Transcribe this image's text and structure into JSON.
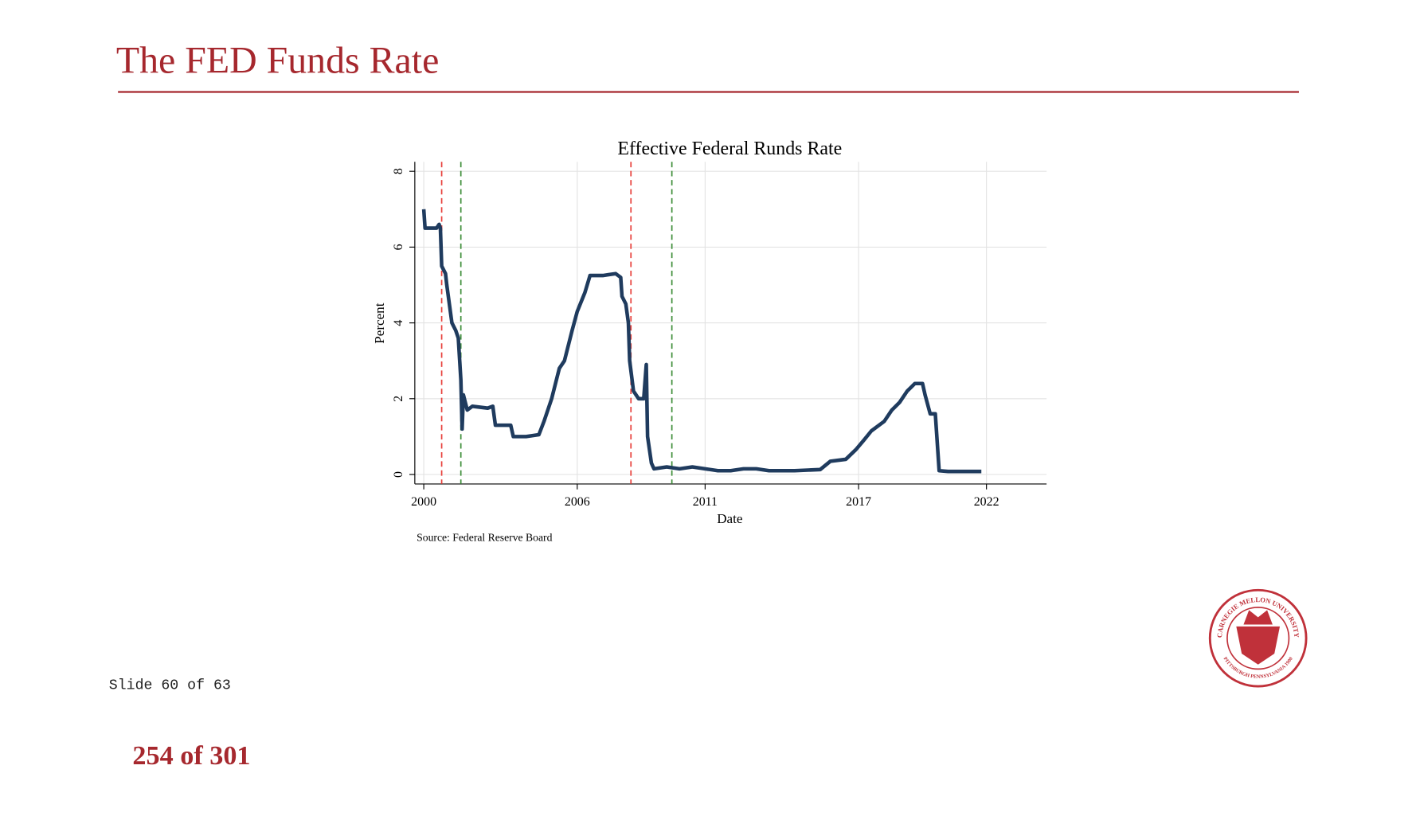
{
  "header": {
    "title": "The FED Funds Rate"
  },
  "chart_data": {
    "type": "line",
    "title": "Effective Federal Runds Rate",
    "x_label": "Date",
    "y_label": "Percent",
    "source": "Source: Federal Reserve Board",
    "xlim": [
      1999.65,
      2024.35
    ],
    "xticks": [
      2000,
      2006,
      2011,
      2017,
      2022
    ],
    "ylim": [
      -0.25,
      8.25
    ],
    "yticks": [
      0,
      2,
      4,
      6,
      8
    ],
    "grid": true,
    "x": [
      2000.0,
      2000.05,
      2000.5,
      2000.6,
      2000.65,
      2000.7,
      2000.85,
      2000.9,
      2001.0,
      2001.1,
      2001.25,
      2001.35,
      2001.45,
      2001.5,
      2001.55,
      2001.7,
      2001.9,
      2002.5,
      2002.7,
      2002.8,
      2003.2,
      2003.4,
      2003.5,
      2004.0,
      2004.5,
      2004.7,
      2005.0,
      2005.3,
      2005.5,
      2005.8,
      2006.0,
      2006.3,
      2006.5,
      2007.0,
      2007.5,
      2007.7,
      2007.75,
      2007.9,
      2008.0,
      2008.05,
      2008.2,
      2008.4,
      2008.6,
      2008.7,
      2008.75,
      2008.9,
      2009.0,
      2009.5,
      2010.0,
      2010.5,
      2011.0,
      2011.5,
      2012.0,
      2012.5,
      2013.0,
      2013.5,
      2014.5,
      2015.5,
      2015.9,
      2016.5,
      2016.9,
      2017.2,
      2017.5,
      2018.0,
      2018.3,
      2018.6,
      2018.9,
      2019.2,
      2019.5,
      2019.6,
      2019.8,
      2020.0,
      2020.15,
      2020.5,
      2021.0,
      2021.8
    ],
    "series": [
      {
        "name": "Effective Federal Funds Rate",
        "color": "#1f3b5e",
        "values": [
          7.0,
          6.5,
          6.5,
          6.6,
          6.5,
          5.5,
          5.3,
          5.0,
          4.5,
          4.0,
          3.8,
          3.6,
          2.5,
          1.2,
          2.1,
          1.7,
          1.8,
          1.75,
          1.8,
          1.3,
          1.3,
          1.3,
          1.0,
          1.0,
          1.05,
          1.4,
          2.0,
          2.8,
          3.0,
          3.8,
          4.3,
          4.8,
          5.25,
          5.25,
          5.3,
          5.2,
          4.7,
          4.5,
          4.0,
          3.0,
          2.2,
          2.0,
          2.0,
          2.9,
          1.0,
          0.3,
          0.15,
          0.2,
          0.15,
          0.2,
          0.15,
          0.1,
          0.1,
          0.15,
          0.15,
          0.1,
          0.1,
          0.13,
          0.35,
          0.4,
          0.66,
          0.9,
          1.15,
          1.4,
          1.7,
          1.9,
          2.2,
          2.4,
          2.4,
          2.1,
          1.6,
          1.6,
          0.1,
          0.08,
          0.08,
          0.08
        ]
      }
    ],
    "vlines": [
      {
        "x": 2000.7,
        "color": "#e8413c"
      },
      {
        "x": 2001.45,
        "color": "#3f8f3a"
      },
      {
        "x": 2008.1,
        "color": "#e8413c"
      },
      {
        "x": 2009.7,
        "color": "#3f8f3a"
      }
    ]
  },
  "logo": {
    "top": "CARNEGIE MELLON UNIVERSITY",
    "bottom": "PITTSBURGH PENNSYLVANIA 1900"
  },
  "footer": {
    "slide": "Slide 60 of 63",
    "page": "254 of 301"
  }
}
